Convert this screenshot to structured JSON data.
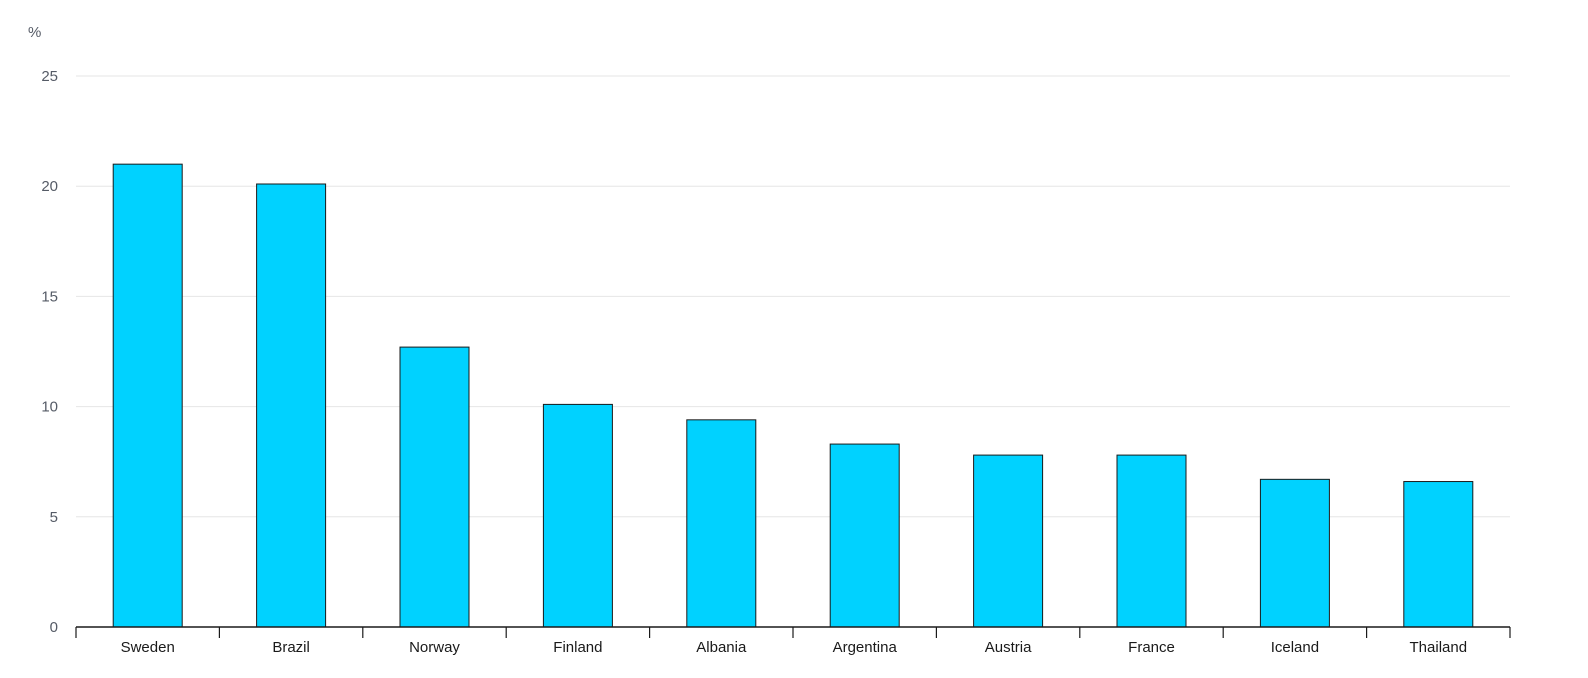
{
  "chart_data": {
    "type": "bar",
    "ylabel": "%",
    "ylim": [
      0,
      25
    ],
    "yticks": [
      0,
      5,
      10,
      15,
      20,
      25
    ],
    "categories": [
      "Sweden",
      "Brazil",
      "Norway",
      "Finland",
      "Albania",
      "Argentina",
      "Austria",
      "France",
      "Iceland",
      "Thailand"
    ],
    "values": [
      21.0,
      20.1,
      12.7,
      10.1,
      9.4,
      8.3,
      7.8,
      7.8,
      6.7,
      6.6
    ],
    "grid": true,
    "legend": "none",
    "colors": {
      "bar_fill": "#00d2ff",
      "bar_stroke": "#1a1a1a",
      "grid": "#e6e6e6",
      "axis": "#1a1a1a"
    }
  }
}
